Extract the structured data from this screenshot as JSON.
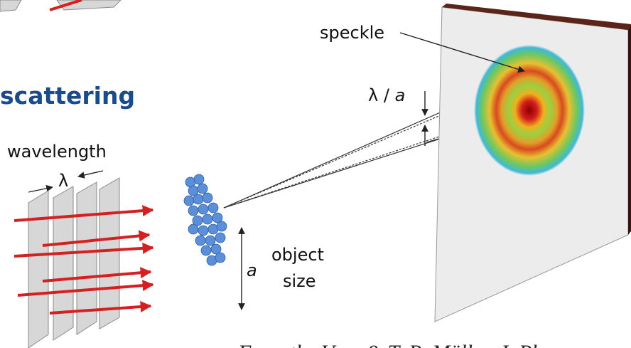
{
  "labels": {
    "speckle": "speckle",
    "ratio_lambda": "λ /",
    "ratio_a": "a",
    "scattering": "scattering",
    "wavelength": "wavelength",
    "lambda": "λ",
    "size_symbol": "a",
    "object": "object",
    "size": "size",
    "credit": "From the Vera & T. R. Müller, J. Ph"
  }
}
